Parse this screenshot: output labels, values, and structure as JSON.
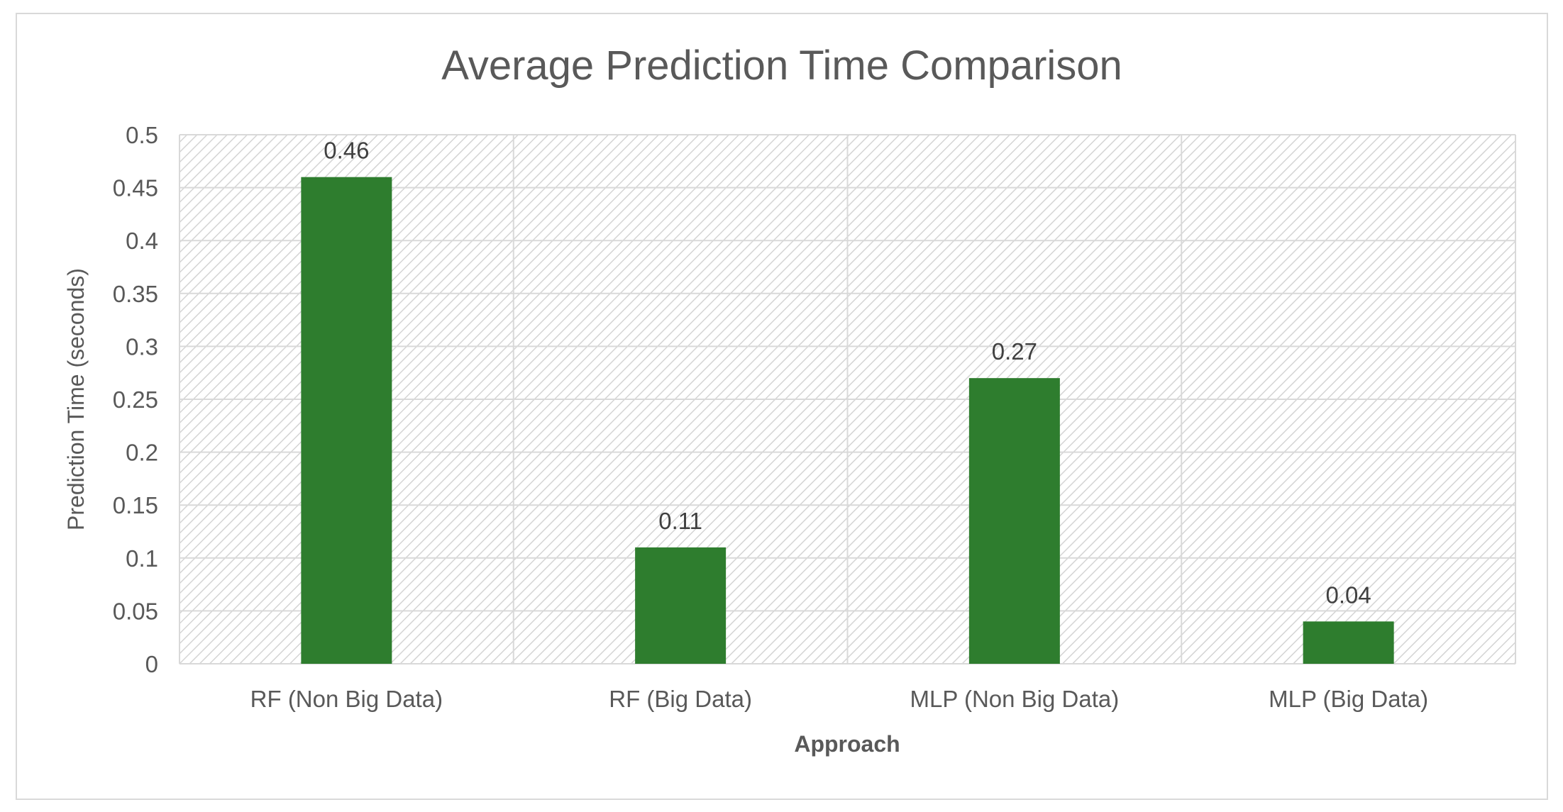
{
  "chart_data": {
    "type": "bar",
    "title": "Average Prediction Time Comparison",
    "xlabel": "Approach",
    "ylabel": "Prediction Time (seconds)",
    "categories": [
      "RF (Non Big Data)",
      "RF (Big Data)",
      "MLP (Non Big Data)",
      "MLP (Big Data)"
    ],
    "values": [
      0.46,
      0.11,
      0.27,
      0.04
    ],
    "data_labels": [
      "0.46",
      "0.11",
      "0.27",
      "0.04"
    ],
    "ylim": [
      0,
      0.5
    ],
    "yticks": [
      0,
      0.05,
      0.1,
      0.15,
      0.2,
      0.25,
      0.3,
      0.35,
      0.4,
      0.45,
      0.5
    ],
    "ytick_labels": [
      "0",
      "0.05",
      "0.1",
      "0.15",
      "0.2",
      "0.25",
      "0.3",
      "0.35",
      "0.4",
      "0.45",
      "0.5"
    ],
    "grid": true,
    "legend": "none",
    "bar_color": "#2e7d2e",
    "grid_color": "#d9d9d9",
    "plot_pattern": "diagonal-hatch"
  }
}
